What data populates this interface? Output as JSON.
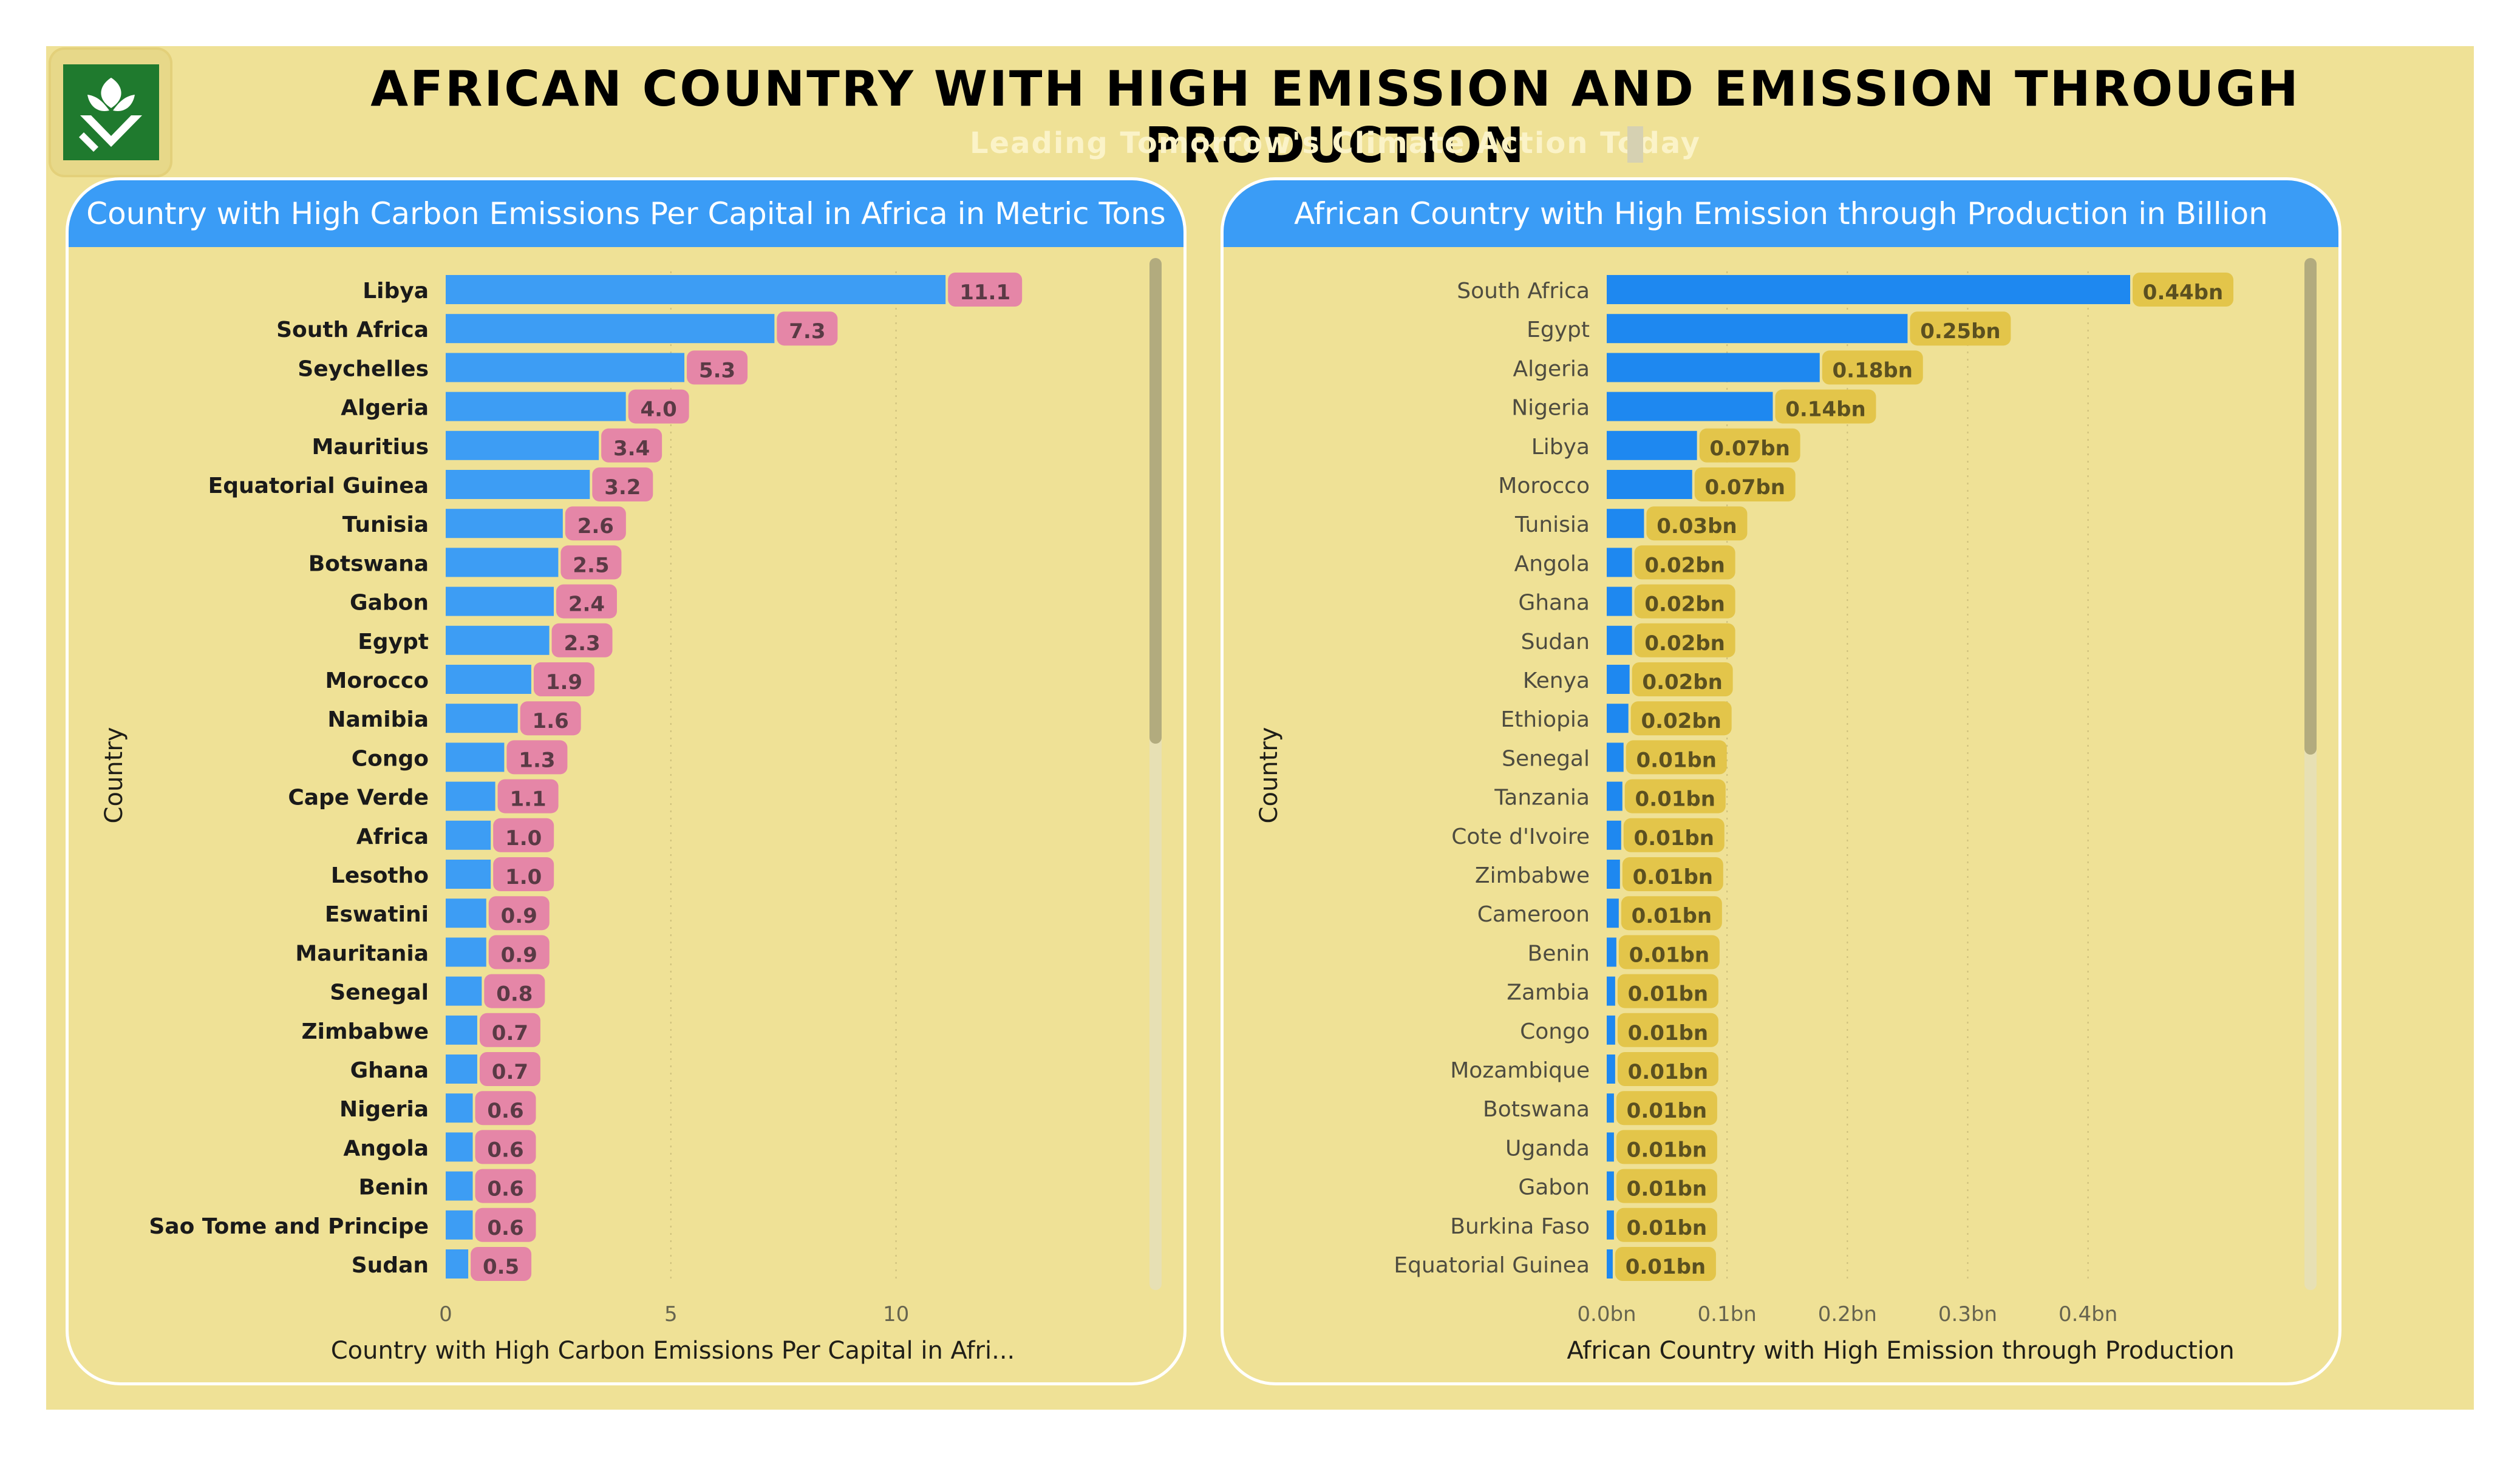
{
  "header": {
    "title": "AFRICAN COUNTRY WITH HIGH EMISSION AND EMISSION THROUGH PRODUCTION",
    "subtitle": "Leading Tomorrow's Climate Action Today"
  },
  "colors": {
    "background": "#efe196",
    "panel_header": "#3a9cf6",
    "bar_left": "#3d9df4",
    "bar_right": "#1e88f0",
    "label_left": "#e586a7",
    "label_right": "#e3c54a",
    "logo_green": "#1f7a2e"
  },
  "logo": {
    "icon": "green-shield-leaf-hands-icon"
  },
  "chart_data": [
    {
      "type": "bar",
      "orientation": "horizontal",
      "panel_title": "Country with High Carbon Emissions Per Capital in Africa in Metric Tons",
      "xlabel": "Country with High Carbon Emissions Per Capital in Afri...",
      "ylabel": "Country",
      "xlim": [
        0,
        12.5
      ],
      "xticks": [
        "0",
        "5",
        "10"
      ],
      "xtick_values": [
        0,
        5,
        10
      ],
      "grid": true,
      "categories": [
        "Libya",
        "South Africa",
        "Seychelles",
        "Algeria",
        "Mauritius",
        "Equatorial Guinea",
        "Tunisia",
        "Botswana",
        "Gabon",
        "Egypt",
        "Morocco",
        "Namibia",
        "Congo",
        "Cape Verde",
        "Africa",
        "Lesotho",
        "Eswatini",
        "Mauritania",
        "Senegal",
        "Zimbabwe",
        "Ghana",
        "Nigeria",
        "Angola",
        "Benin",
        "Sao Tome and Principe",
        "Sudan"
      ],
      "values": [
        11.1,
        7.3,
        5.3,
        4.0,
        3.4,
        3.2,
        2.6,
        2.5,
        2.4,
        2.3,
        1.9,
        1.6,
        1.3,
        1.1,
        1.0,
        1.0,
        0.9,
        0.9,
        0.8,
        0.7,
        0.7,
        0.6,
        0.6,
        0.6,
        0.6,
        0.5
      ],
      "data_labels": [
        "11.1",
        "7.3",
        "5.3",
        "4.0",
        "3.4",
        "3.2",
        "2.6",
        "2.5",
        "2.4",
        "2.3",
        "1.9",
        "1.6",
        "1.3",
        "1.1",
        "1.0",
        "1.0",
        "0.9",
        "0.9",
        "0.8",
        "0.7",
        "0.7",
        "0.6",
        "0.6",
        "0.6",
        "0.6",
        "0.5"
      ]
    },
    {
      "type": "bar",
      "orientation": "horizontal",
      "panel_title": "African Country with High Emission through Production in Billion",
      "xlabel": "African Country with High Emission through Production",
      "ylabel": "Country",
      "xlim": [
        0,
        0.49
      ],
      "xticks": [
        "0.0bn",
        "0.1bn",
        "0.2bn",
        "0.3bn",
        "0.4bn"
      ],
      "xtick_values": [
        0,
        0.1,
        0.2,
        0.3,
        0.4
      ],
      "grid": true,
      "categories": [
        "South Africa",
        "Egypt",
        "Algeria",
        "Nigeria",
        "Libya",
        "Morocco",
        "Tunisia",
        "Angola",
        "Ghana",
        "Sudan",
        "Kenya",
        "Ethiopia",
        "Senegal",
        "Tanzania",
        "Cote d'Ivoire",
        "Zimbabwe",
        "Cameroon",
        "Benin",
        "Zambia",
        "Congo",
        "Mozambique",
        "Botswana",
        "Uganda",
        "Gabon",
        "Burkina Faso",
        "Equatorial Guinea"
      ],
      "values": [
        0.435,
        0.25,
        0.177,
        0.138,
        0.075,
        0.071,
        0.031,
        0.021,
        0.021,
        0.021,
        0.019,
        0.018,
        0.014,
        0.013,
        0.012,
        0.011,
        0.01,
        0.008,
        0.007,
        0.007,
        0.007,
        0.006,
        0.006,
        0.006,
        0.006,
        0.005
      ],
      "data_labels": [
        "0.44bn",
        "0.25bn",
        "0.18bn",
        "0.14bn",
        "0.07bn",
        "0.07bn",
        "0.03bn",
        "0.02bn",
        "0.02bn",
        "0.02bn",
        "0.02bn",
        "0.02bn",
        "0.01bn",
        "0.01bn",
        "0.01bn",
        "0.01bn",
        "0.01bn",
        "0.01bn",
        "0.01bn",
        "0.01bn",
        "0.01bn",
        "0.01bn",
        "0.01bn",
        "0.01bn",
        "0.01bn",
        "0.01bn"
      ]
    }
  ]
}
